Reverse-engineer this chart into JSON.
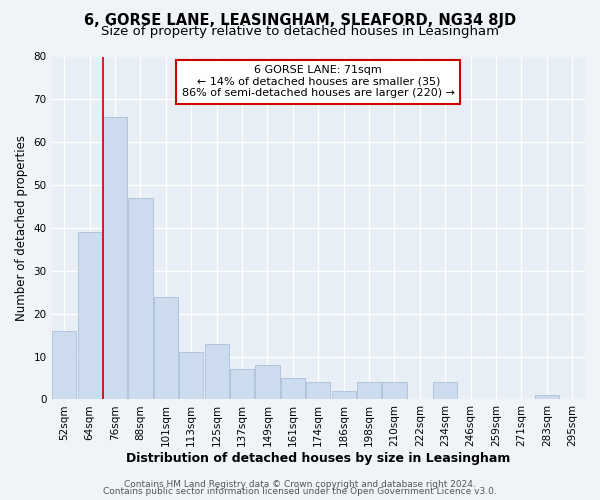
{
  "title1": "6, GORSE LANE, LEASINGHAM, SLEAFORD, NG34 8JD",
  "title2": "Size of property relative to detached houses in Leasingham",
  "xlabel": "Distribution of detached houses by size in Leasingham",
  "ylabel": "Number of detached properties",
  "categories": [
    "52sqm",
    "64sqm",
    "76sqm",
    "88sqm",
    "101sqm",
    "113sqm",
    "125sqm",
    "137sqm",
    "149sqm",
    "161sqm",
    "174sqm",
    "186sqm",
    "198sqm",
    "210sqm",
    "222sqm",
    "234sqm",
    "246sqm",
    "259sqm",
    "271sqm",
    "283sqm",
    "295sqm"
  ],
  "values": [
    16,
    39,
    66,
    47,
    24,
    11,
    13,
    7,
    8,
    5,
    4,
    2,
    4,
    4,
    0,
    4,
    0,
    0,
    0,
    1,
    0
  ],
  "bar_color": "#ccdcee",
  "bar_edge_color": "#aabfd8",
  "annotation_text_line1": "6 GORSE LANE: 71sqm",
  "annotation_text_line2": "← 14% of detached houses are smaller (35)",
  "annotation_text_line3": "86% of semi-detached houses are larger (220) →",
  "annotation_box_color": "#ffffff",
  "annotation_border_color": "#cc0000",
  "vline_color": "#cc0000",
  "ylim": [
    0,
    80
  ],
  "yticks": [
    0,
    10,
    20,
    30,
    40,
    50,
    60,
    70,
    80
  ],
  "footer1": "Contains HM Land Registry data © Crown copyright and database right 2024.",
  "footer2": "Contains public sector information licensed under the Open Government Licence v3.0.",
  "bg_color": "#f0f4f8",
  "plot_bg_color": "#e8eef5",
  "grid_color": "#ffffff",
  "title1_fontsize": 10.5,
  "title2_fontsize": 9.5,
  "xlabel_fontsize": 9,
  "ylabel_fontsize": 8.5,
  "tick_fontsize": 7.5,
  "footer_fontsize": 6.5,
  "annot_fontsize": 8
}
